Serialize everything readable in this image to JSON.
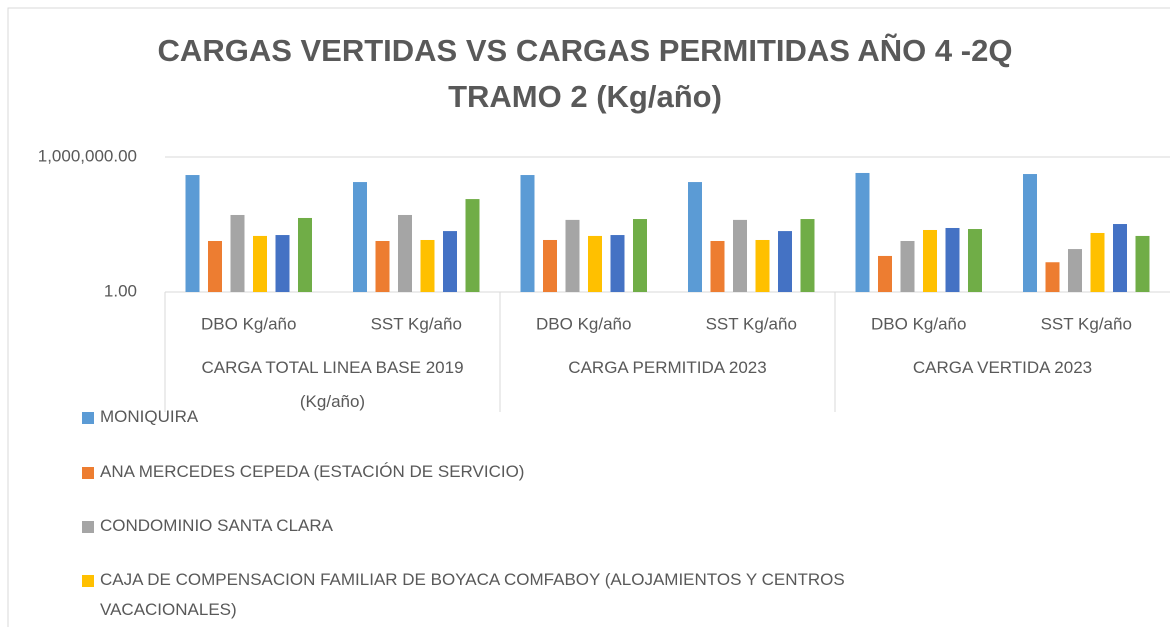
{
  "chart_data": {
    "type": "bar",
    "title": "CARGAS VERTIDAS VS CARGAS PERMITIDAS AÑO 4 -2Q TRAMO 2 (Kg/año)",
    "categories": [
      "DBO Kg/año",
      "SST Kg/año",
      "DBO Kg/año",
      "SST Kg/año",
      "DBO Kg/año",
      "SST Kg/año"
    ],
    "category_groups": [
      "CARGA TOTAL LINEA BASE 2019 (Kg/año)",
      "CARGA PERMITIDA 2023",
      "CARGA VERTIDA 2023"
    ],
    "log_scale": true,
    "grid": true,
    "ylim": [
      1,
      1000000
    ],
    "yticks": [
      {
        "value": 1,
        "label": "1.00"
      },
      {
        "value": 1000000,
        "label": "1,000,000.00"
      }
    ],
    "series": [
      {
        "name": "MONIQUIRA",
        "color": "#5b9bd5",
        "values": [
          158000,
          77000,
          158000,
          77000,
          195000,
          175000
        ]
      },
      {
        "name": "ANA MERCEDES CEPEDA (ESTACIÓN DE SERVICIO)",
        "color": "#ed7d31",
        "values": [
          185,
          185,
          205,
          185,
          40,
          21
        ]
      },
      {
        "name": "CONDOMINIO SANTA CLARA",
        "color": "#a5a5a5",
        "values": [
          2650,
          2650,
          1600,
          1600,
          185,
          81
        ]
      },
      {
        "name": "CAJA DE COMPENSACION FAMILIAR DE BOYACA COMFABOY (ALOJAMIENTOS Y CENTROS VACACIONALES)",
        "color": "#ffc000",
        "values": [
          310,
          205,
          310,
          205,
          570,
          420
        ]
      },
      {
        "color": "#4472c4",
        "values": [
          340,
          510,
          340,
          510,
          700,
          1050
        ]
      },
      {
        "color": "#70ad47",
        "values": [
          1950,
          13500,
          1750,
          1750,
          630,
          310
        ]
      }
    ]
  }
}
